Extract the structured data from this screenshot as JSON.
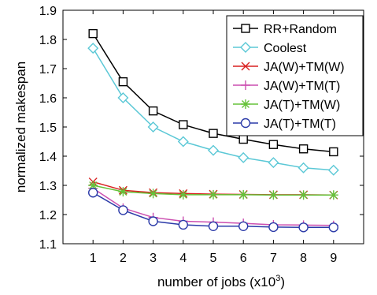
{
  "chart_data": {
    "type": "line",
    "title": "",
    "xlabel": "number of jobs  (x10",
    "xlabel_sup": "3",
    "xlabel_close": ")",
    "ylabel": "normalized makespan",
    "xlim": [
      0,
      10
    ],
    "ylim": [
      1.1,
      1.9
    ],
    "x_ticks": [
      1,
      2,
      3,
      4,
      5,
      6,
      7,
      8,
      9
    ],
    "y_ticks": [
      1.1,
      1.2,
      1.3,
      1.4,
      1.5,
      1.6,
      1.7,
      1.8,
      1.9
    ],
    "x": [
      1,
      2,
      3,
      4,
      5,
      6,
      7,
      8,
      9
    ],
    "legend_position": "top-right",
    "grid": false,
    "series": [
      {
        "name": "RR+Random",
        "color": "#000000",
        "marker": "square",
        "values": [
          1.82,
          1.655,
          1.555,
          1.508,
          1.478,
          1.458,
          1.44,
          1.425,
          1.415
        ]
      },
      {
        "name": "Coolest",
        "color": "#5bc8d6",
        "marker": "diamond",
        "values": [
          1.77,
          1.6,
          1.5,
          1.45,
          1.42,
          1.395,
          1.378,
          1.36,
          1.352
        ]
      },
      {
        "name": "JA(W)+TM(W)",
        "color": "#d92020",
        "marker": "x",
        "values": [
          1.312,
          1.283,
          1.275,
          1.272,
          1.27,
          1.269,
          1.268,
          1.268,
          1.267
        ]
      },
      {
        "name": "JA(W)+TM(T)",
        "color": "#cc4fb0",
        "marker": "plus",
        "values": [
          1.29,
          1.222,
          1.19,
          1.177,
          1.174,
          1.17,
          1.165,
          1.164,
          1.163
        ]
      },
      {
        "name": "JA(T)+TM(W)",
        "color": "#66c23a",
        "marker": "asterisk",
        "values": [
          1.3,
          1.278,
          1.272,
          1.268,
          1.268,
          1.268,
          1.267,
          1.267,
          1.267
        ]
      },
      {
        "name": "JA(T)+TM(T)",
        "color": "#2b3aa8",
        "marker": "circle",
        "values": [
          1.275,
          1.215,
          1.177,
          1.165,
          1.16,
          1.16,
          1.157,
          1.156,
          1.156
        ]
      }
    ]
  }
}
